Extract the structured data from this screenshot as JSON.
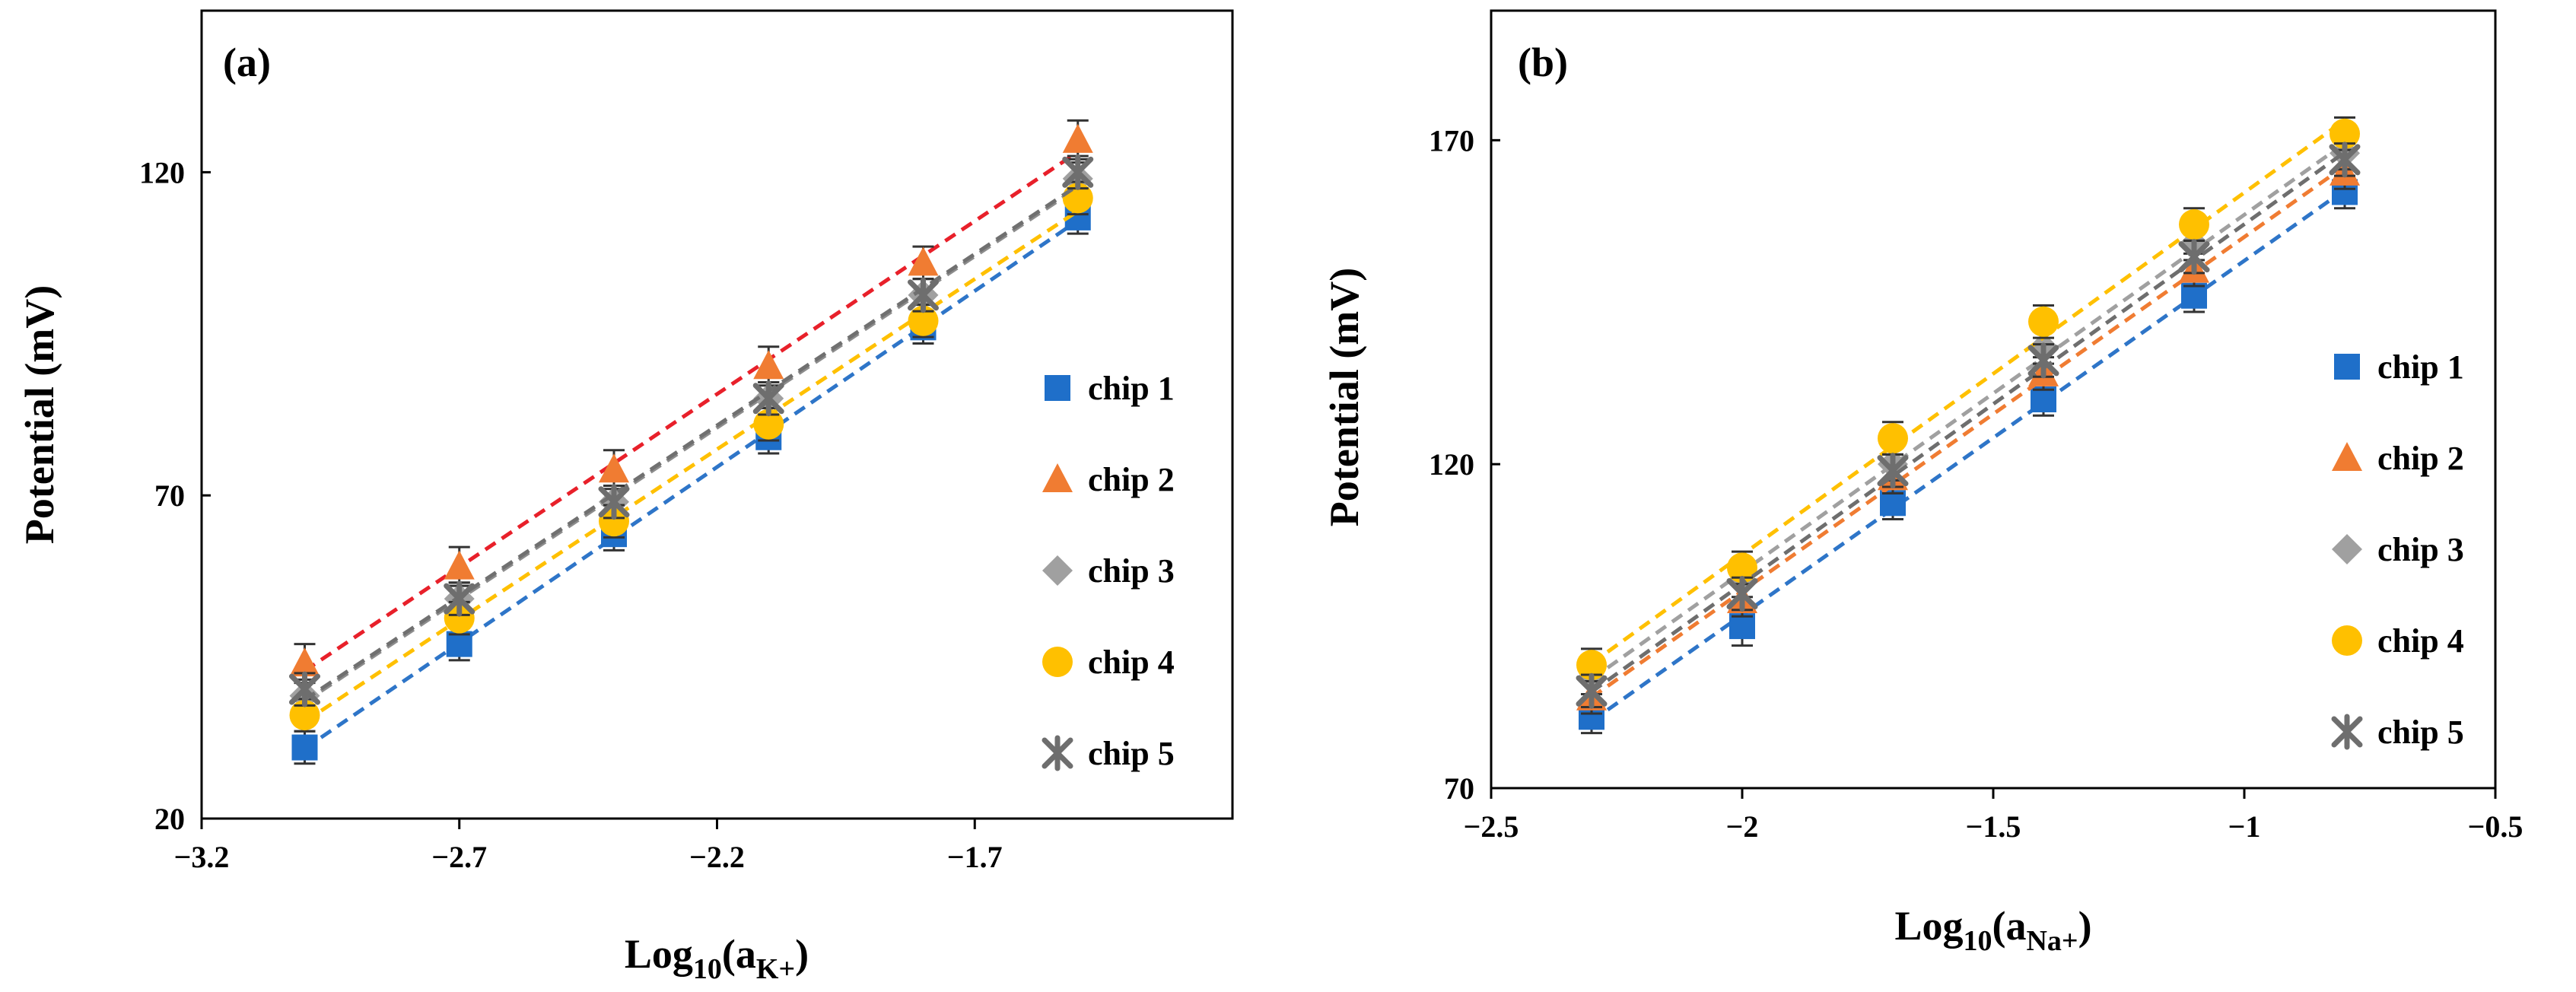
{
  "chart_data": [
    {
      "type": "scatter",
      "panel_label": "(a)",
      "title": "",
      "ylabel": "Potential (mV)",
      "xlabel": "Log10(aK+)",
      "xlabel_parts": {
        "main": "Log",
        "sub1": "10",
        "open": "(a",
        "sub2": "K+",
        "close": ")"
      },
      "xlim": [
        -3.2,
        -1.2
      ],
      "ylim": [
        20,
        145
      ],
      "xticks": [
        -3.2,
        -2.7,
        -2.2,
        -1.7
      ],
      "xtick_labels": [
        "−3.2",
        "−2.7",
        "−2.2",
        "−1.7"
      ],
      "yticks": [
        20,
        70,
        120
      ],
      "ytick_labels": [
        "20",
        "70",
        "120"
      ],
      "x": [
        -3.0,
        -2.7,
        -2.4,
        -2.1,
        -1.8,
        -1.5
      ],
      "series": [
        {
          "name": "chip 1",
          "marker": "square",
          "color": "#1f6fc9",
          "line_color": "#2e75c8",
          "values": [
            31,
            47,
            64,
            79,
            96,
            113
          ],
          "err": [
            2.5,
            2.5,
            2.5,
            2.5,
            2.5,
            2.5
          ]
        },
        {
          "name": "chip 2",
          "marker": "triangle",
          "color": "#f07c32",
          "line_color": "#e8202a",
          "values": [
            44,
            59,
            74,
            90,
            106,
            125
          ],
          "err": [
            3,
            3,
            3,
            3,
            2.5,
            3
          ]
        },
        {
          "name": "chip 3",
          "marker": "diamond",
          "color": "#a0a0a0",
          "line_color": "#8c8c8c",
          "values": [
            39,
            54,
            69,
            85,
            101,
            119
          ],
          "err": [
            2.5,
            2.5,
            2.5,
            2.5,
            2.5,
            2.5
          ]
        },
        {
          "name": "chip 4",
          "marker": "circle",
          "color": "#ffc000",
          "line_color": "#ffc000",
          "values": [
            36,
            51,
            66,
            81,
            97,
            116
          ],
          "err": [
            2.5,
            2.5,
            2.5,
            2.5,
            2.5,
            2.5
          ]
        },
        {
          "name": "chip 5",
          "marker": "star",
          "color": "#6e6e6e",
          "line_color": "#707070",
          "values": [
            40,
            54,
            69,
            85,
            101,
            120
          ],
          "err": [
            2.5,
            2.5,
            2.5,
            2.5,
            2.5,
            2.5
          ]
        }
      ],
      "legend": "right",
      "grid": false
    },
    {
      "type": "scatter",
      "panel_label": "(b)",
      "title": "",
      "ylabel": "Potential (mV)",
      "xlabel": "Log10(aNa+)",
      "xlabel_parts": {
        "main": "Log",
        "sub1": "10",
        "open": "(a",
        "sub2": "Na+",
        "close": ")"
      },
      "xlim": [
        -2.5,
        -0.5
      ],
      "ylim": [
        70,
        190
      ],
      "xticks": [
        -2.5,
        -2.0,
        -1.5,
        -1.0,
        -0.5
      ],
      "xtick_labels": [
        "−2.5",
        "−2",
        "−1.5",
        "−1",
        "−0.5"
      ],
      "yticks": [
        70,
        120,
        170
      ],
      "ytick_labels": [
        "70",
        "120",
        "170"
      ],
      "x": [
        -2.3,
        -2.0,
        -1.7,
        -1.4,
        -1.1,
        -0.8
      ],
      "series": [
        {
          "name": "chip 1",
          "marker": "square",
          "color": "#1f6fc9",
          "line_color": "#2e75c8",
          "values": [
            81,
            95,
            114,
            130,
            146,
            162
          ],
          "err": [
            2.5,
            3,
            2.5,
            2.5,
            2.5,
            2.5
          ]
        },
        {
          "name": "chip 2",
          "marker": "triangle",
          "color": "#f07c32",
          "line_color": "#f07c32",
          "values": [
            84,
            99,
            118,
            134,
            150,
            165
          ],
          "err": [
            2.5,
            2.5,
            2.5,
            2.5,
            2.5,
            2.5
          ]
        },
        {
          "name": "chip 3",
          "marker": "diamond",
          "color": "#a0a0a0",
          "line_color": "#a0a0a0",
          "values": [
            87,
            102,
            120,
            138,
            154,
            168
          ],
          "err": [
            2.5,
            2.5,
            2.5,
            2.5,
            2.5,
            2.5
          ]
        },
        {
          "name": "chip 4",
          "marker": "circle",
          "color": "#ffc000",
          "line_color": "#ffc000",
          "values": [
            89,
            104,
            124,
            142,
            157,
            171
          ],
          "err": [
            2.5,
            2.5,
            2.5,
            2.5,
            2.5,
            2.5
          ]
        },
        {
          "name": "chip 5",
          "marker": "star",
          "color": "#6e6e6e",
          "line_color": "#6e6e6e",
          "values": [
            85,
            100,
            119,
            136,
            152,
            167
          ],
          "err": [
            2.5,
            2.5,
            2.5,
            2.5,
            2.5,
            2.5
          ]
        }
      ],
      "legend": "right",
      "grid": false
    }
  ]
}
